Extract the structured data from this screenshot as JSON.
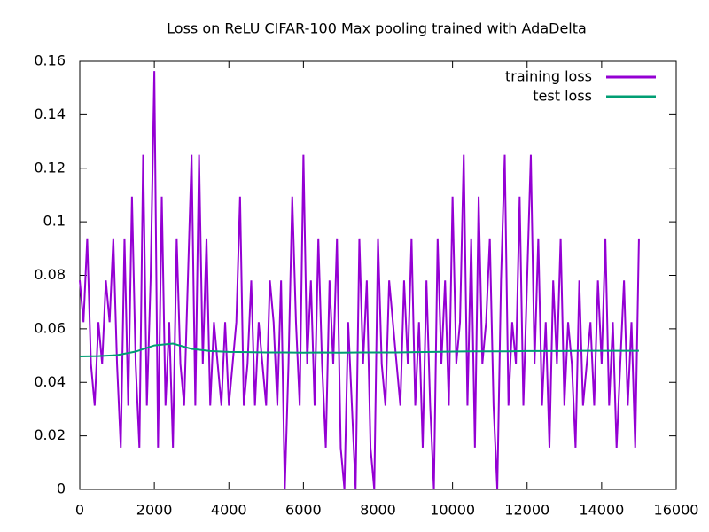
{
  "chart_data": {
    "type": "line",
    "title": "Loss on ReLU CIFAR-100 Max pooling trained with AdaDelta",
    "xlim": [
      0,
      16000
    ],
    "xticks": [
      0,
      2000,
      4000,
      6000,
      8000,
      10000,
      12000,
      14000,
      16000
    ],
    "ylim": [
      0,
      0.16
    ],
    "yticks": [
      0,
      0.02,
      0.04,
      0.06,
      0.08,
      0.1,
      0.12,
      0.14,
      0.16
    ],
    "legend": "top-right",
    "series": [
      {
        "name": "training loss",
        "color": "#9400d3",
        "x": [
          0,
          100,
          200,
          300,
          400,
          500,
          600,
          700,
          800,
          900,
          1000,
          1100,
          1200,
          1300,
          1400,
          1500,
          1600,
          1700,
          1800,
          1900,
          2000,
          2100,
          2200,
          2300,
          2400,
          2500,
          2600,
          2700,
          2800,
          2900,
          3000,
          3100,
          3200,
          3300,
          3400,
          3500,
          3600,
          3700,
          3800,
          3900,
          4000,
          4100,
          4200,
          4300,
          4400,
          4500,
          4600,
          4700,
          4800,
          4900,
          5000,
          5100,
          5200,
          5300,
          5400,
          5500,
          5600,
          5700,
          5800,
          5900,
          6000,
          6100,
          6200,
          6300,
          6400,
          6500,
          6600,
          6700,
          6800,
          6900,
          7000,
          7100,
          7200,
          7300,
          7400,
          7500,
          7600,
          7700,
          7800,
          7900,
          8000,
          8100,
          8200,
          8300,
          8400,
          8500,
          8600,
          8700,
          8800,
          8900,
          9000,
          9100,
          9200,
          9300,
          9400,
          9500,
          9600,
          9700,
          9800,
          9900,
          10000,
          10100,
          10200,
          10300,
          10400,
          10500,
          10600,
          10700,
          10800,
          10900,
          11000,
          11100,
          11200,
          11300,
          11400,
          11500,
          11600,
          11700,
          11800,
          11900,
          12000,
          12100,
          12200,
          12300,
          12400,
          12500,
          12600,
          12700,
          12800,
          12900,
          13000,
          13100,
          13200,
          13300,
          13400,
          13500,
          13600,
          13700,
          13800,
          13900,
          14000,
          14100,
          14200,
          14300,
          14400,
          14500,
          14600,
          14700,
          14800,
          14900,
          15000
        ],
        "values": [
          0.0781,
          0.0625,
          0.0938,
          0.0469,
          0.0313,
          0.0625,
          0.0469,
          0.0781,
          0.0625,
          0.0938,
          0.0469,
          0.0156,
          0.0938,
          0.0313,
          0.1094,
          0.0469,
          0.0156,
          0.125,
          0.0313,
          0.0781,
          0.1563,
          0.0156,
          0.1094,
          0.0313,
          0.0625,
          0.0156,
          0.0938,
          0.0469,
          0.0313,
          0.0781,
          0.125,
          0.0313,
          0.125,
          0.0469,
          0.0938,
          0.0313,
          0.0625,
          0.0469,
          0.0313,
          0.0625,
          0.0313,
          0.0469,
          0.0625,
          0.1094,
          0.0313,
          0.0469,
          0.0781,
          0.0313,
          0.0625,
          0.0469,
          0.0313,
          0.0781,
          0.0625,
          0.0313,
          0.0781,
          0,
          0.0469,
          0.1094,
          0.0625,
          0.0313,
          0.125,
          0.0469,
          0.0781,
          0.0313,
          0.0938,
          0.0469,
          0.0156,
          0.0781,
          0.0469,
          0.0938,
          0.0156,
          0,
          0.0625,
          0.0313,
          0,
          0.0938,
          0.0469,
          0.0781,
          0.0156,
          0,
          0.0938,
          0.0469,
          0.0313,
          0.0781,
          0.0625,
          0.0469,
          0.0313,
          0.0781,
          0.0469,
          0.0938,
          0.0313,
          0.0625,
          0.0156,
          0.0781,
          0.0313,
          0,
          0.0938,
          0.0469,
          0.0781,
          0.0313,
          0.1094,
          0.0469,
          0.0625,
          0.125,
          0.0313,
          0.0938,
          0.0156,
          0.1094,
          0.0469,
          0.0625,
          0.0938,
          0.0313,
          0,
          0.0781,
          0.125,
          0.0313,
          0.0625,
          0.0469,
          0.1094,
          0.0313,
          0.0781,
          0.125,
          0.0469,
          0.0938,
          0.0313,
          0.0625,
          0.0156,
          0.0781,
          0.0469,
          0.0938,
          0.0313,
          0.0625,
          0.0469,
          0.0156,
          0.0781,
          0.0313,
          0.0469,
          0.0625,
          0.0313,
          0.0781,
          0.0469,
          0.0938,
          0.0313,
          0.0625,
          0.0156,
          0.0469,
          0.0781,
          0.0313,
          0.0625,
          0.0156,
          0.0938
        ]
      },
      {
        "name": "test loss",
        "color": "#009e73",
        "x": [
          0,
          500,
          1000,
          1500,
          2000,
          2500,
          3000,
          3500,
          4000,
          4500,
          5000,
          5500,
          6000,
          6500,
          7000,
          7500,
          8000,
          8500,
          9000,
          9500,
          10000,
          10500,
          11000,
          11500,
          12000,
          12500,
          13000,
          13500,
          14000,
          14500,
          15000
        ],
        "values": [
          0.0497,
          0.0498,
          0.0502,
          0.0515,
          0.0538,
          0.0545,
          0.0525,
          0.0517,
          0.0514,
          0.0513,
          0.0512,
          0.0512,
          0.0511,
          0.0512,
          0.0511,
          0.0512,
          0.0512,
          0.0512,
          0.0513,
          0.0514,
          0.0515,
          0.0516,
          0.0516,
          0.0516,
          0.0517,
          0.0517,
          0.0517,
          0.0518,
          0.0518,
          0.0518,
          0.0518
        ]
      }
    ]
  }
}
